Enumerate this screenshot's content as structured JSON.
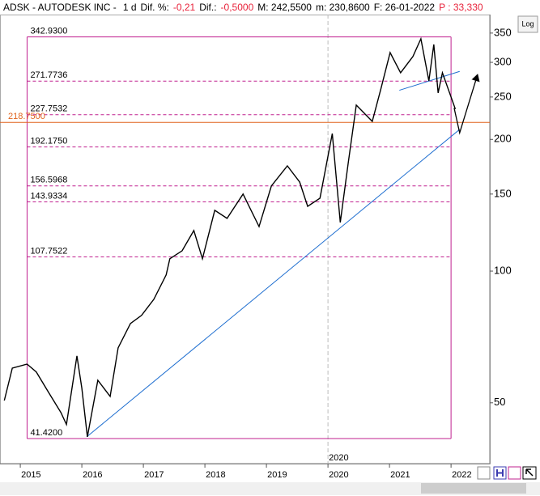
{
  "chart_data": {
    "type": "line",
    "title": "ADSK - AUTODESK INC -",
    "header_fields": [
      {
        "text": "1 d",
        "color": "#000000"
      },
      {
        "text": "Dif. %:",
        "color": "#000000"
      },
      {
        "text": "-0,21",
        "color": "#e8223a"
      },
      {
        "text": "Dif.:",
        "color": "#000000"
      },
      {
        "text": "-0,5000",
        "color": "#e8223a"
      },
      {
        "text": "M: 242,5500",
        "color": "#000000"
      },
      {
        "text": "m: 230,8600",
        "color": "#000000"
      },
      {
        "text": "F: 26-01-2022",
        "color": "#000000"
      },
      {
        "text": "P : 33,330",
        "color": "#e8223a"
      }
    ],
    "log_button": "Log",
    "log_scale": true,
    "xlim": [
      2014.67,
      2022.63
    ],
    "xticks": [
      2015,
      2016,
      2017,
      2018,
      2019,
      2020,
      2021,
      2022
    ],
    "ylim": [
      36.3,
      385.8
    ],
    "yticks": [
      50,
      100,
      150,
      200,
      250,
      300,
      350
    ],
    "series": [
      {
        "name": "ADSK",
        "color": "#000000",
        "x": [
          2014.74,
          2014.87,
          2015.11,
          2015.26,
          2015.46,
          2015.66,
          2015.75,
          2015.92,
          2016.0,
          2016.09,
          2016.26,
          2016.46,
          2016.59,
          2016.79,
          2016.97,
          2017.17,
          2017.37,
          2017.43,
          2017.63,
          2017.82,
          2017.96,
          2018.16,
          2018.36,
          2018.62,
          2018.88,
          2019.08,
          2019.34,
          2019.54,
          2019.67,
          2019.87,
          2020.07,
          2020.2,
          2020.33,
          2020.46,
          2020.72,
          2020.86,
          2021.01,
          2021.18,
          2021.38,
          2021.51,
          2021.64,
          2021.72,
          2021.79,
          2021.86,
          2022.07
        ],
        "values": [
          50.6,
          60.0,
          61.3,
          58.8,
          52.8,
          47.5,
          44.6,
          64.0,
          54.0,
          41.8,
          56.3,
          51.7,
          66.8,
          75.9,
          79.2,
          86.2,
          98.0,
          106.7,
          111.3,
          123.8,
          106.7,
          137.7,
          132.0,
          150.0,
          126.4,
          156.5,
          174.0,
          159.8,
          140.6,
          146.8,
          206.2,
          129.2,
          177.0,
          239.6,
          219.9,
          260.9,
          315.8,
          284.0,
          309.3,
          339.7,
          272.1,
          329.6,
          255.4,
          284.0,
          234.6
        ]
      }
    ],
    "box_x": [
      2015.11,
      2022.0
    ],
    "levels": [
      {
        "value": 342.93,
        "label": "342.9300",
        "color": "#c0208f",
        "style": "solid",
        "full": false
      },
      {
        "value": 271.7736,
        "label": "271.7736",
        "color": "#c0208f",
        "style": "dashed",
        "full": false
      },
      {
        "value": 227.7532,
        "label": "227.7532",
        "color": "#c0208f",
        "style": "dashed",
        "full": false
      },
      {
        "value": 218.75,
        "label": "218.7500",
        "color": "#e0641e",
        "style": "solid",
        "full": true
      },
      {
        "value": 192.175,
        "label": "192.1750",
        "color": "#c0208f",
        "style": "dashed",
        "full": false
      },
      {
        "value": 156.5968,
        "label": "156.5968",
        "color": "#c0208f",
        "style": "dashed",
        "full": false
      },
      {
        "value": 143.9334,
        "label": "143.9334",
        "color": "#c0208f",
        "style": "dashed",
        "full": false
      },
      {
        "value": 107.7522,
        "label": "107.7522",
        "color": "#c0208f",
        "style": "dashed",
        "full": false
      },
      {
        "value": 41.42,
        "label": "41.4200",
        "color": "#c0208f",
        "style": "solid",
        "full": false
      }
    ],
    "marker_x": 2020,
    "trendlines": [
      {
        "color": "#1f6fd0",
        "arrow": false,
        "x": [
          2016.08,
          2022.14
        ],
        "y": [
          41.8,
          210.8
        ]
      },
      {
        "color": "#1f6fd0",
        "arrow": false,
        "x": [
          2021.16,
          2022.14
        ],
        "y": [
          259,
          286
        ]
      },
      {
        "color": "#000000",
        "arrow": true,
        "x": [
          2022.05,
          2022.14,
          2022.43
        ],
        "y": [
          236,
          207,
          281
        ]
      }
    ]
  }
}
